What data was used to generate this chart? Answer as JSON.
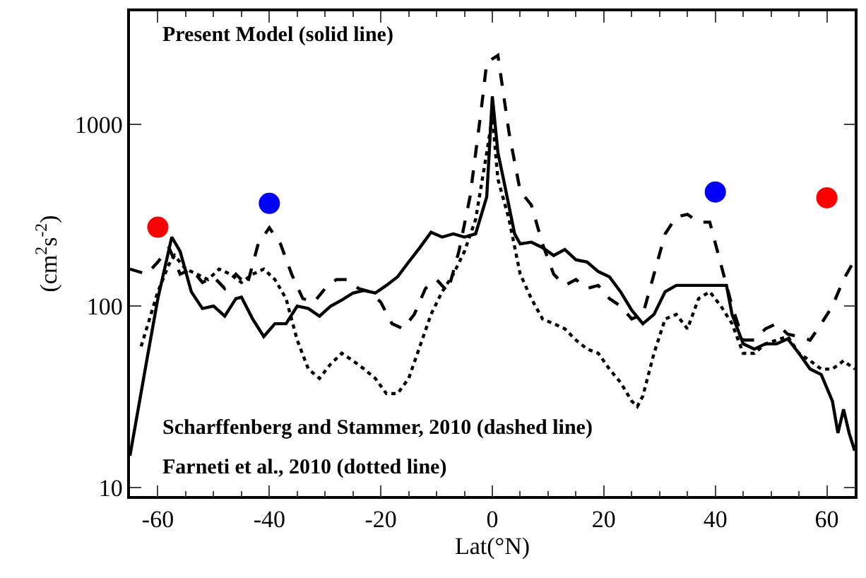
{
  "chart_data": {
    "type": "line",
    "xlabel": "Lat(°N)",
    "ylabel": "(cm$^{2}$s$^{-2}$)",
    "log": "y",
    "grid": false,
    "legend": false,
    "xlim": [
      -65,
      65
    ],
    "xticks": [
      -60,
      -40,
      -20,
      0,
      20,
      40,
      60
    ],
    "ylim": [
      9,
      4200
    ],
    "yticks": [
      10,
      100,
      1000
    ],
    "annotations": [
      "Present Model (solid line)",
      "Scharffenberg and Stammer, 2010 (dashed line)",
      "Farneti et al., 2010 (dotted line)"
    ],
    "series": [
      {
        "color": "#000000",
        "line_style": "solid",
        "marker": "none",
        "x": [
          -65,
          -62,
          -60,
          -57.5,
          -56,
          -54,
          -52,
          -50,
          -48,
          -46,
          -45,
          -43,
          -41,
          -39,
          -37,
          -35,
          -33,
          -31,
          -29,
          -27,
          -25,
          -23,
          -21,
          -19,
          -17,
          -15,
          -13,
          -11,
          -9,
          -7,
          -5,
          -3,
          -1,
          0,
          1,
          2,
          4,
          5,
          7,
          9,
          11,
          13,
          15,
          17,
          19,
          21,
          23,
          25,
          27,
          29,
          31,
          33,
          35,
          37,
          40,
          42,
          43,
          45,
          47,
          49,
          51,
          53,
          55,
          57,
          59,
          61,
          62,
          63,
          64,
          65
        ],
        "values": [
          15,
          50,
          110,
          240,
          200,
          120,
          97,
          100,
          88,
          110,
          112,
          85,
          68,
          80,
          80,
          100,
          97,
          88,
          100,
          108,
          118,
          122,
          118,
          130,
          145,
          175,
          210,
          255,
          240,
          250,
          240,
          250,
          400,
          1430,
          700,
          500,
          250,
          220,
          225,
          210,
          190,
          205,
          180,
          175,
          155,
          145,
          120,
          95,
          80,
          90,
          120,
          130,
          130,
          130,
          130,
          130,
          90,
          62,
          58,
          62,
          62,
          66,
          55,
          45,
          42,
          30,
          20,
          27,
          20,
          16
        ]
      },
      {
        "color": "#000000",
        "line_style": "dashed",
        "marker": "none",
        "x": [
          -65,
          -62,
          -60,
          -58,
          -56,
          -54,
          -52,
          -50,
          -48,
          -46,
          -44,
          -42,
          -40,
          -38,
          -36,
          -34,
          -32,
          -30,
          -28,
          -26,
          -24,
          -22,
          -20,
          -18,
          -16,
          -14,
          -12,
          -10,
          -8,
          -6,
          -4,
          -2,
          -1,
          1,
          3,
          5,
          7,
          9,
          11,
          13,
          15,
          17,
          19,
          21,
          23,
          25,
          27,
          29,
          31,
          33,
          35,
          37,
          39,
          41,
          43,
          45,
          47,
          49,
          51,
          53,
          55,
          57,
          59,
          61,
          63,
          65
        ],
        "values": [
          160,
          150,
          175,
          210,
          150,
          160,
          135,
          145,
          125,
          150,
          130,
          220,
          270,
          220,
          150,
          110,
          105,
          125,
          140,
          140,
          125,
          120,
          105,
          80,
          75,
          90,
          125,
          140,
          120,
          200,
          400,
          1200,
          2200,
          2400,
          900,
          430,
          360,
          220,
          150,
          130,
          140,
          125,
          130,
          110,
          100,
          85,
          90,
          150,
          250,
          310,
          320,
          290,
          290,
          170,
          100,
          65,
          65,
          75,
          80,
          70,
          68,
          65,
          80,
          100,
          140,
          180
        ]
      },
      {
        "color": "#000000",
        "line_style": "dotted",
        "marker": "none",
        "x": [
          -63,
          -60,
          -58,
          -57,
          -55,
          -53,
          -51,
          -49,
          -47,
          -45,
          -43,
          -41,
          -39,
          -37,
          -35,
          -33,
          -31,
          -29,
          -27,
          -25,
          -23,
          -21,
          -19,
          -17,
          -15,
          -13,
          -11,
          -9,
          -7,
          -5,
          -3,
          -1,
          0,
          1,
          3,
          5,
          7,
          9,
          11,
          13,
          15,
          17,
          19,
          21,
          23,
          25,
          26,
          27,
          29,
          31,
          33,
          35,
          37,
          39,
          41,
          43,
          45,
          47,
          49,
          51,
          53,
          55,
          57,
          59,
          61,
          63,
          65
        ],
        "values": [
          60,
          120,
          170,
          190,
          160,
          150,
          140,
          160,
          150,
          135,
          150,
          160,
          140,
          110,
          65,
          45,
          40,
          48,
          55,
          50,
          45,
          40,
          33,
          33,
          40,
          60,
          90,
          120,
          150,
          200,
          300,
          700,
          1100,
          500,
          300,
          150,
          110,
          85,
          80,
          75,
          65,
          58,
          55,
          45,
          38,
          30,
          28,
          32,
          55,
          85,
          90,
          75,
          110,
          120,
          100,
          80,
          55,
          55,
          62,
          65,
          68,
          55,
          50,
          45,
          45,
          50,
          45
        ]
      },
      {
        "type": "scatter",
        "color": "#ff0000",
        "marker": "circle",
        "x": [
          -60,
          60
        ],
        "values": [
          272,
          395
        ]
      },
      {
        "type": "scatter",
        "color": "#0000ff",
        "marker": "circle",
        "x": [
          -40,
          40
        ],
        "values": [
          368,
          425
        ]
      }
    ]
  }
}
